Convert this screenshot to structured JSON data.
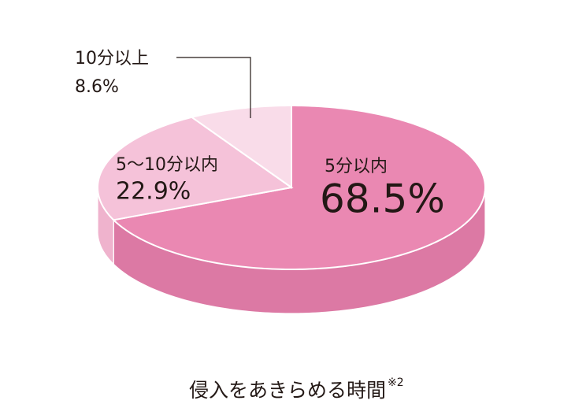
{
  "chart_data": {
    "type": "pie3d",
    "title": "侵入をあきらめる時間",
    "title_note": "※2",
    "categories": [
      "5分以内",
      "5〜10分以内",
      "10分以上"
    ],
    "values": [
      68.5,
      22.9,
      8.6
    ],
    "value_labels": [
      "68.5%",
      "22.9%",
      "8.6%"
    ],
    "colors": [
      "#ea88b2",
      "#f5c2d9",
      "#f9dce9"
    ],
    "side_colors": [
      "#dc79a4",
      "#efb3cd",
      "#f2cfdf"
    ]
  }
}
